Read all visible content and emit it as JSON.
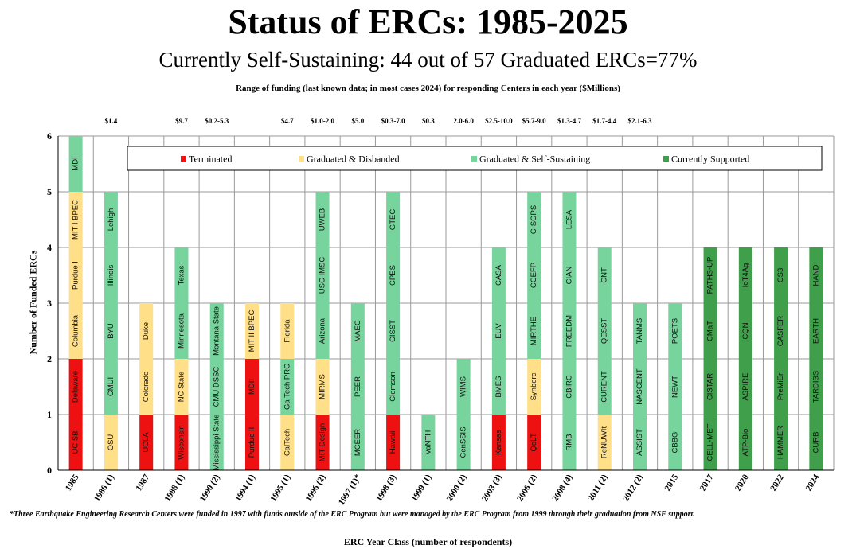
{
  "chart_data": {
    "type": "bar",
    "stacked": true,
    "title": "Status of ERCs: 1985-2025",
    "subtitle": "Currently Self-Sustaining: 44 out of 57 Graduated ERCs=77%",
    "range_caption": "Range of funding (last known data;  in most cases 2024) for responding Centers in each year ($Millions)",
    "xlabel": "ERC Year Class (number of respondents)",
    "ylabel": "Number of Funded ERCs",
    "ylim": [
      0,
      6
    ],
    "yticks": [
      "0",
      "1",
      "2",
      "3",
      "4",
      "5",
      "6"
    ],
    "grid": true,
    "legend_placement": "top",
    "footnote": "*Three Earthquake Engineering Research Centers were funded in 1997 with funds outside of the ERC Program but were managed by the ERC Program from 1999 through their graduation from NSF support.",
    "legend": [
      {
        "key": "terminated",
        "label": "Terminated"
      },
      {
        "key": "disbanded",
        "label": "Graduated & Disbanded"
      },
      {
        "key": "sustaining",
        "label": "Graduated & Self-Sustaining"
      },
      {
        "key": "current",
        "label": "Currently Supported"
      }
    ],
    "colors": {
      "terminated": "#ee1111",
      "disbanded": "#ffdf88",
      "sustaining": "#77d49c",
      "current": "#3f9f4a"
    },
    "categories": [
      "1985",
      "1986 (1)",
      "1987",
      "1988 (1)",
      "1990 (2)",
      "1994 (1)",
      "1995 (1)",
      "1996 (2)",
      "1997 (1)*",
      "1998 (3)",
      "1999 (1)",
      "2000 (2)",
      "2003 (3)",
      "2006 (2)",
      "2008 (4)",
      "2011 (2)",
      "2012 (2)",
      "2015",
      "2017",
      "2020",
      "2022",
      "2024"
    ],
    "funding_ranges": [
      "",
      "$1.4",
      "",
      "$9.7",
      "$0.2-5.3",
      "",
      "$4.7",
      "$1.0-2.0",
      "$5.0",
      "$0.3-7.0",
      "$0.3",
      "2.0-6.0",
      "$2.5-10.0",
      "$5.7-9.0",
      "$1.3-4.7",
      "$1.7-4.4",
      "$2.1-6.3",
      "",
      "",
      "",
      "",
      ""
    ],
    "stacks": [
      [
        {
          "name": "UC SB",
          "status": "terminated"
        },
        {
          "name": "Delaware",
          "status": "terminated"
        },
        {
          "name": "Columbia",
          "status": "disbanded"
        },
        {
          "name": "Purdue I",
          "status": "disbanded"
        },
        {
          "name": "MIT I BPEC",
          "status": "disbanded"
        },
        {
          "name": "MDI",
          "status": "sustaining"
        }
      ],
      [
        {
          "name": "OSU",
          "status": "disbanded"
        },
        {
          "name": "CMUI",
          "status": "sustaining"
        },
        {
          "name": "BYU",
          "status": "sustaining"
        },
        {
          "name": "Illinois",
          "status": "sustaining"
        },
        {
          "name": "Lehigh",
          "status": "sustaining"
        }
      ],
      [
        {
          "name": "UCLA",
          "status": "terminated"
        },
        {
          "name": "Colorado",
          "status": "disbanded"
        },
        {
          "name": "Duke",
          "status": "disbanded"
        }
      ],
      [
        {
          "name": "Wisconsin",
          "status": "terminated"
        },
        {
          "name": "NC State",
          "status": "disbanded"
        },
        {
          "name": "Minnesota",
          "status": "sustaining"
        },
        {
          "name": "Texas",
          "status": "sustaining"
        }
      ],
      [
        {
          "name": "Mississippi State",
          "status": "sustaining"
        },
        {
          "name": "CMU DSSC",
          "status": "sustaining"
        },
        {
          "name": "Montana State",
          "status": "sustaining"
        }
      ],
      [
        {
          "name": "Purdue II",
          "status": "terminated"
        },
        {
          "name": "MDII",
          "status": "terminated"
        },
        {
          "name": "MIT II BPEC",
          "status": "disbanded"
        }
      ],
      [
        {
          "name": "CalTech",
          "status": "disbanded"
        },
        {
          "name": "Ga Tech PRC",
          "status": "sustaining"
        },
        {
          "name": "Florida",
          "status": "disbanded"
        }
      ],
      [
        {
          "name": "MIT Design",
          "status": "terminated"
        },
        {
          "name": "MIRMS",
          "status": "disbanded"
        },
        {
          "name": "Arizona",
          "status": "sustaining"
        },
        {
          "name": "USC IMSC",
          "status": "sustaining"
        },
        {
          "name": "UWEB",
          "status": "sustaining"
        }
      ],
      [
        {
          "name": "MCEER",
          "status": "sustaining"
        },
        {
          "name": "PEER",
          "status": "sustaining"
        },
        {
          "name": "MAEC",
          "status": "sustaining"
        }
      ],
      [
        {
          "name": "Hawaii",
          "status": "terminated"
        },
        {
          "name": "Clemson",
          "status": "sustaining"
        },
        {
          "name": "CISST",
          "status": "sustaining"
        },
        {
          "name": "CPES",
          "status": "sustaining"
        },
        {
          "name": "GTEC",
          "status": "sustaining"
        }
      ],
      [
        {
          "name": "VaNTH",
          "status": "sustaining"
        }
      ],
      [
        {
          "name": "CenSSIS",
          "status": "sustaining"
        },
        {
          "name": "WIMS",
          "status": "sustaining"
        }
      ],
      [
        {
          "name": "Kansas",
          "status": "terminated"
        },
        {
          "name": "BMES",
          "status": "sustaining"
        },
        {
          "name": "EUV",
          "status": "sustaining"
        },
        {
          "name": "CASA",
          "status": "sustaining"
        }
      ],
      [
        {
          "name": "QoLT",
          "status": "terminated"
        },
        {
          "name": "Synberc",
          "status": "disbanded"
        },
        {
          "name": "MIRTHE",
          "status": "sustaining"
        },
        {
          "name": "CCEFP",
          "status": "sustaining"
        },
        {
          "name": "C-SOPS",
          "status": "sustaining"
        }
      ],
      [
        {
          "name": "RMB",
          "status": "sustaining"
        },
        {
          "name": "CBIRC",
          "status": "sustaining"
        },
        {
          "name": "FREEDM",
          "status": "sustaining"
        },
        {
          "name": "CIAN",
          "status": "sustaining"
        },
        {
          "name": "LESA",
          "status": "sustaining"
        }
      ],
      [
        {
          "name": "ReNUWIt",
          "status": "disbanded"
        },
        {
          "name": "CURENT",
          "status": "sustaining"
        },
        {
          "name": "QESST",
          "status": "sustaining"
        },
        {
          "name": "CNT",
          "status": "sustaining"
        }
      ],
      [
        {
          "name": "ASSIST",
          "status": "sustaining"
        },
        {
          "name": "NASCENT",
          "status": "sustaining"
        },
        {
          "name": "TANMS",
          "status": "sustaining"
        }
      ],
      [
        {
          "name": "CBBG",
          "status": "sustaining"
        },
        {
          "name": "NEWT",
          "status": "sustaining"
        },
        {
          "name": "POETS",
          "status": "sustaining"
        }
      ],
      [
        {
          "name": "CELL-MET",
          "status": "current"
        },
        {
          "name": "CISTAR",
          "status": "current"
        },
        {
          "name": "CMaT",
          "status": "current"
        },
        {
          "name": "PATHS-UP",
          "status": "current"
        }
      ],
      [
        {
          "name": "ATP-Bio",
          "status": "current"
        },
        {
          "name": "ASPIRE",
          "status": "current"
        },
        {
          "name": "CQN",
          "status": "current"
        },
        {
          "name": "IoT4Ag",
          "status": "current"
        }
      ],
      [
        {
          "name": "HAMMER",
          "status": "current"
        },
        {
          "name": "PreMiEr",
          "status": "current"
        },
        {
          "name": "CASFER",
          "status": "current"
        },
        {
          "name": "CS3",
          "status": "current"
        }
      ],
      [
        {
          "name": "CURB",
          "status": "current"
        },
        {
          "name": "TARDISS",
          "status": "current"
        },
        {
          "name": "EARTH",
          "status": "current"
        },
        {
          "name": "HAND",
          "status": "current"
        }
      ]
    ]
  }
}
